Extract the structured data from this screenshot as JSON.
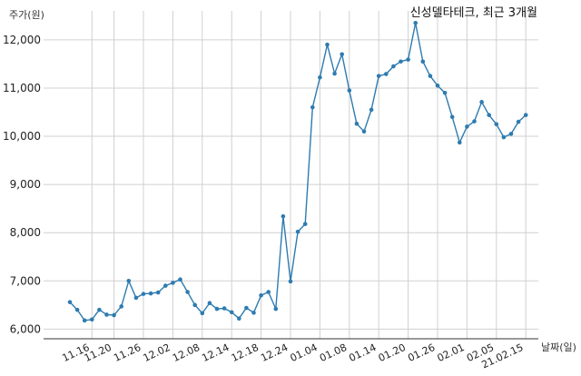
{
  "chart_data": {
    "type": "line",
    "title": "신성델타테크, 최근 3개월",
    "ylabel": "주가(원)",
    "xlabel": "날짜(일)",
    "ylim": [
      5800,
      12600
    ],
    "yticks": [
      6000,
      7000,
      8000,
      9000,
      10000,
      11000,
      12000
    ],
    "ytick_labels": [
      "6,000",
      "7,000",
      "8,000",
      "9,000",
      "10,000",
      "11,000",
      "12,000"
    ],
    "xtick_labels": [
      "11.16",
      "11.20",
      "11.26",
      "12.02",
      "12.08",
      "12.14",
      "12.18",
      "12.24",
      "01.04",
      "01.08",
      "01.14",
      "01.20",
      "01.26",
      "02.01",
      "02.05",
      "21.02.15"
    ],
    "xtick_positions": [
      3,
      6,
      10,
      14,
      18,
      22,
      26,
      30,
      34,
      38,
      42,
      46,
      50,
      54,
      58,
      62
    ],
    "grid": true,
    "color": "#2e7bb0",
    "series": [
      {
        "values": [
          6560,
          6400,
          6180,
          6200,
          6400,
          6300,
          6290,
          6470,
          7000,
          6650,
          6730,
          6740,
          6760,
          6900,
          6960,
          7030,
          6770,
          6500,
          6330,
          6540,
          6420,
          6430,
          6350,
          6220,
          6440,
          6340,
          6700,
          6770,
          6420,
          8340,
          6990,
          8020,
          8180,
          10600,
          11220,
          11900,
          11300,
          11700,
          10950,
          10260,
          10100,
          10550,
          11250,
          11290,
          11450,
          11550,
          11590,
          12350,
          11550,
          11250,
          11050,
          10900,
          10400,
          9870,
          10200,
          10310,
          10710,
          10440,
          10250,
          9980,
          10050,
          10300,
          10440
        ]
      }
    ]
  }
}
